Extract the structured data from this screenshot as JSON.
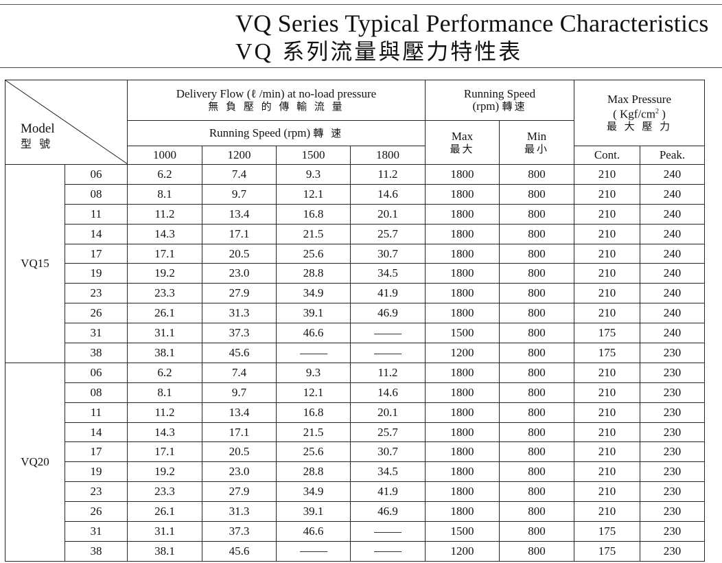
{
  "title": {
    "en": "VQ Series Typical Performance Characteristics",
    "zh_prefix": "VQ",
    "zh": "系列流量與壓力特性表"
  },
  "headers": {
    "model_en": "Model",
    "model_zh": "型 號",
    "delivery_en": "Delivery Flow (ℓ /min) at no-load pressure",
    "delivery_zh": "無 負 壓 的 傳 輸 流 量",
    "running_speed_sub": "Running Speed  (rpm)",
    "running_speed_sub_zh": "轉 速",
    "speeds": [
      "1000",
      "1200",
      "1500",
      "1800"
    ],
    "running_speed_en": "Running Speed",
    "running_speed_unit": "(rpm)",
    "running_speed_zh": "轉速",
    "max_en": "Max",
    "max_zh": "最大",
    "min_en": "Min",
    "min_zh": "最小",
    "max_pressure_en": "Max Pressure",
    "max_pressure_unit_a": "( Kgf/cm",
    "max_pressure_unit_sup": "2",
    "max_pressure_unit_b": " )",
    "max_pressure_zh": "最 大 壓 力",
    "cont": "Cont.",
    "peak": "Peak."
  },
  "series": [
    {
      "name": "VQ15",
      "rows": [
        [
          "06",
          "6.2",
          "7.4",
          "9.3",
          "11.2",
          "1800",
          "800",
          "210",
          "240"
        ],
        [
          "08",
          "8.1",
          "9.7",
          "12.1",
          "14.6",
          "1800",
          "800",
          "210",
          "240"
        ],
        [
          "11",
          "11.2",
          "13.4",
          "16.8",
          "20.1",
          "1800",
          "800",
          "210",
          "240"
        ],
        [
          "14",
          "14.3",
          "17.1",
          "21.5",
          "25.7",
          "1800",
          "800",
          "210",
          "240"
        ],
        [
          "17",
          "17.1",
          "20.5",
          "25.6",
          "30.7",
          "1800",
          "800",
          "210",
          "240"
        ],
        [
          "19",
          "19.2",
          "23.0",
          "28.8",
          "34.5",
          "1800",
          "800",
          "210",
          "240"
        ],
        [
          "23",
          "23.3",
          "27.9",
          "34.9",
          "41.9",
          "1800",
          "800",
          "210",
          "240"
        ],
        [
          "26",
          "26.1",
          "31.3",
          "39.1",
          "46.9",
          "1800",
          "800",
          "210",
          "240"
        ],
        [
          "31",
          "31.1",
          "37.3",
          "46.6",
          "—",
          "1500",
          "800",
          "175",
          "240"
        ],
        [
          "38",
          "38.1",
          "45.6",
          "—",
          "—",
          "1200",
          "800",
          "175",
          "230"
        ]
      ]
    },
    {
      "name": "VQ20",
      "rows": [
        [
          "06",
          "6.2",
          "7.4",
          "9.3",
          "11.2",
          "1800",
          "800",
          "210",
          "230"
        ],
        [
          "08",
          "8.1",
          "9.7",
          "12.1",
          "14.6",
          "1800",
          "800",
          "210",
          "230"
        ],
        [
          "11",
          "11.2",
          "13.4",
          "16.8",
          "20.1",
          "1800",
          "800",
          "210",
          "230"
        ],
        [
          "14",
          "14.3",
          "17.1",
          "21.5",
          "25.7",
          "1800",
          "800",
          "210",
          "230"
        ],
        [
          "17",
          "17.1",
          "20.5",
          "25.6",
          "30.7",
          "1800",
          "800",
          "210",
          "230"
        ],
        [
          "19",
          "19.2",
          "23.0",
          "28.8",
          "34.5",
          "1800",
          "800",
          "210",
          "230"
        ],
        [
          "23",
          "23.3",
          "27.9",
          "34.9",
          "41.9",
          "1800",
          "800",
          "210",
          "230"
        ],
        [
          "26",
          "26.1",
          "31.3",
          "39.1",
          "46.9",
          "1800",
          "800",
          "210",
          "230"
        ],
        [
          "31",
          "31.1",
          "37.3",
          "46.6",
          "—",
          "1500",
          "800",
          "175",
          "230"
        ],
        [
          "38",
          "38.1",
          "45.6",
          "—",
          "—",
          "1200",
          "800",
          "175",
          "230"
        ]
      ]
    }
  ]
}
